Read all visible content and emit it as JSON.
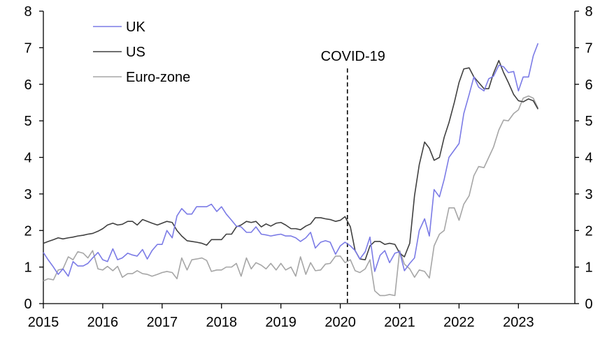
{
  "chart_data": {
    "type": "line",
    "title": "",
    "xlabel": "",
    "ylabel": "",
    "ylim": [
      0,
      8
    ],
    "xlim": [
      2015,
      2023.95
    ],
    "y_ticks": [
      "0",
      "1",
      "2",
      "3",
      "4",
      "5",
      "6",
      "7",
      "8"
    ],
    "x_ticks": [
      "2015",
      "2016",
      "2017",
      "2018",
      "2019",
      "2020",
      "2021",
      "2022",
      "2023"
    ],
    "legend_position": "top-left",
    "annotation": {
      "label": "COVID-19",
      "x": 2020.12
    },
    "series": [
      {
        "name": "UK",
        "color": "#7b7be6",
        "values": [
          [
            2015.0,
            1.4
          ],
          [
            2015.08,
            1.2
          ],
          [
            2015.17,
            1.0
          ],
          [
            2015.25,
            0.8
          ],
          [
            2015.33,
            0.95
          ],
          [
            2015.42,
            0.75
          ],
          [
            2015.5,
            1.15
          ],
          [
            2015.58,
            1.03
          ],
          [
            2015.67,
            1.03
          ],
          [
            2015.75,
            1.1
          ],
          [
            2015.83,
            1.25
          ],
          [
            2015.92,
            1.4
          ],
          [
            2016.0,
            1.2
          ],
          [
            2016.08,
            1.15
          ],
          [
            2016.17,
            1.5
          ],
          [
            2016.25,
            1.2
          ],
          [
            2016.33,
            1.25
          ],
          [
            2016.42,
            1.38
          ],
          [
            2016.5,
            1.33
          ],
          [
            2016.58,
            1.3
          ],
          [
            2016.67,
            1.48
          ],
          [
            2016.75,
            1.22
          ],
          [
            2016.83,
            1.45
          ],
          [
            2016.92,
            1.62
          ],
          [
            2017.0,
            1.62
          ],
          [
            2017.08,
            2.0
          ],
          [
            2017.17,
            1.8
          ],
          [
            2017.25,
            2.4
          ],
          [
            2017.33,
            2.6
          ],
          [
            2017.42,
            2.45
          ],
          [
            2017.5,
            2.45
          ],
          [
            2017.58,
            2.65
          ],
          [
            2017.67,
            2.65
          ],
          [
            2017.75,
            2.65
          ],
          [
            2017.83,
            2.72
          ],
          [
            2017.92,
            2.52
          ],
          [
            2018.0,
            2.65
          ],
          [
            2018.08,
            2.45
          ],
          [
            2018.17,
            2.28
          ],
          [
            2018.25,
            2.12
          ],
          [
            2018.33,
            2.1
          ],
          [
            2018.42,
            1.95
          ],
          [
            2018.5,
            1.95
          ],
          [
            2018.58,
            2.1
          ],
          [
            2018.67,
            1.9
          ],
          [
            2018.75,
            1.88
          ],
          [
            2018.83,
            1.85
          ],
          [
            2018.92,
            1.88
          ],
          [
            2019.0,
            1.9
          ],
          [
            2019.08,
            1.85
          ],
          [
            2019.17,
            1.85
          ],
          [
            2019.25,
            1.8
          ],
          [
            2019.33,
            1.7
          ],
          [
            2019.42,
            1.8
          ],
          [
            2019.5,
            1.95
          ],
          [
            2019.58,
            1.52
          ],
          [
            2019.67,
            1.68
          ],
          [
            2019.75,
            1.72
          ],
          [
            2019.83,
            1.68
          ],
          [
            2019.92,
            1.35
          ],
          [
            2020.0,
            1.58
          ],
          [
            2020.08,
            1.68
          ],
          [
            2020.17,
            1.58
          ],
          [
            2020.25,
            1.45
          ],
          [
            2020.33,
            1.22
          ],
          [
            2020.42,
            1.42
          ],
          [
            2020.5,
            1.82
          ],
          [
            2020.58,
            0.88
          ],
          [
            2020.67,
            1.32
          ],
          [
            2020.75,
            1.45
          ],
          [
            2020.83,
            1.12
          ],
          [
            2020.92,
            1.38
          ],
          [
            2021.0,
            1.42
          ],
          [
            2021.08,
            0.9
          ],
          [
            2021.17,
            1.1
          ],
          [
            2021.25,
            1.25
          ],
          [
            2021.33,
            2.0
          ],
          [
            2021.42,
            2.32
          ],
          [
            2021.5,
            1.85
          ],
          [
            2021.58,
            3.12
          ],
          [
            2021.67,
            2.92
          ],
          [
            2021.75,
            3.4
          ],
          [
            2021.83,
            4.0
          ],
          [
            2021.92,
            4.2
          ],
          [
            2022.0,
            4.38
          ],
          [
            2022.08,
            5.2
          ],
          [
            2022.17,
            5.72
          ],
          [
            2022.25,
            6.2
          ],
          [
            2022.33,
            5.92
          ],
          [
            2022.42,
            5.82
          ],
          [
            2022.5,
            6.15
          ],
          [
            2022.58,
            6.22
          ],
          [
            2022.67,
            6.52
          ],
          [
            2022.75,
            6.48
          ],
          [
            2022.83,
            6.32
          ],
          [
            2022.92,
            6.35
          ],
          [
            2023.0,
            5.82
          ],
          [
            2023.08,
            6.2
          ],
          [
            2023.17,
            6.2
          ],
          [
            2023.25,
            6.78
          ],
          [
            2023.33,
            7.12
          ]
        ]
      },
      {
        "name": "US",
        "color": "#404040",
        "values": [
          [
            2015.0,
            1.65
          ],
          [
            2015.08,
            1.7
          ],
          [
            2015.17,
            1.75
          ],
          [
            2015.25,
            1.8
          ],
          [
            2015.33,
            1.77
          ],
          [
            2015.42,
            1.8
          ],
          [
            2015.5,
            1.82
          ],
          [
            2015.58,
            1.85
          ],
          [
            2015.67,
            1.87
          ],
          [
            2015.75,
            1.9
          ],
          [
            2015.83,
            1.92
          ],
          [
            2015.92,
            1.98
          ],
          [
            2016.0,
            2.05
          ],
          [
            2016.08,
            2.15
          ],
          [
            2016.17,
            2.2
          ],
          [
            2016.25,
            2.15
          ],
          [
            2016.33,
            2.17
          ],
          [
            2016.42,
            2.25
          ],
          [
            2016.5,
            2.25
          ],
          [
            2016.58,
            2.15
          ],
          [
            2016.67,
            2.3
          ],
          [
            2016.75,
            2.25
          ],
          [
            2016.83,
            2.2
          ],
          [
            2016.92,
            2.15
          ],
          [
            2017.0,
            2.2
          ],
          [
            2017.08,
            2.25
          ],
          [
            2017.17,
            2.22
          ],
          [
            2017.25,
            2.0
          ],
          [
            2017.33,
            1.85
          ],
          [
            2017.42,
            1.72
          ],
          [
            2017.5,
            1.7
          ],
          [
            2017.58,
            1.68
          ],
          [
            2017.67,
            1.65
          ],
          [
            2017.75,
            1.6
          ],
          [
            2017.83,
            1.75
          ],
          [
            2017.92,
            1.75
          ],
          [
            2018.0,
            1.75
          ],
          [
            2018.08,
            1.9
          ],
          [
            2018.17,
            1.9
          ],
          [
            2018.25,
            2.1
          ],
          [
            2018.33,
            2.15
          ],
          [
            2018.42,
            2.25
          ],
          [
            2018.5,
            2.22
          ],
          [
            2018.58,
            2.25
          ],
          [
            2018.67,
            2.1
          ],
          [
            2018.75,
            2.18
          ],
          [
            2018.83,
            2.12
          ],
          [
            2018.92,
            2.2
          ],
          [
            2019.0,
            2.22
          ],
          [
            2019.08,
            2.15
          ],
          [
            2019.17,
            2.05
          ],
          [
            2019.25,
            2.05
          ],
          [
            2019.33,
            2.02
          ],
          [
            2019.42,
            2.12
          ],
          [
            2019.5,
            2.18
          ],
          [
            2019.58,
            2.35
          ],
          [
            2019.67,
            2.35
          ],
          [
            2019.75,
            2.32
          ],
          [
            2019.83,
            2.3
          ],
          [
            2019.92,
            2.25
          ],
          [
            2020.0,
            2.28
          ],
          [
            2020.08,
            2.38
          ],
          [
            2020.17,
            2.1
          ],
          [
            2020.25,
            1.45
          ],
          [
            2020.33,
            1.22
          ],
          [
            2020.42,
            1.2
          ],
          [
            2020.5,
            1.58
          ],
          [
            2020.58,
            1.7
          ],
          [
            2020.67,
            1.7
          ],
          [
            2020.75,
            1.62
          ],
          [
            2020.83,
            1.65
          ],
          [
            2020.92,
            1.62
          ],
          [
            2021.0,
            1.38
          ],
          [
            2021.08,
            1.28
          ],
          [
            2021.17,
            1.65
          ],
          [
            2021.25,
            2.95
          ],
          [
            2021.33,
            3.8
          ],
          [
            2021.42,
            4.42
          ],
          [
            2021.5,
            4.25
          ],
          [
            2021.58,
            3.92
          ],
          [
            2021.67,
            4.0
          ],
          [
            2021.75,
            4.55
          ],
          [
            2021.83,
            4.95
          ],
          [
            2021.92,
            5.5
          ],
          [
            2022.0,
            6.05
          ],
          [
            2022.08,
            6.42
          ],
          [
            2022.17,
            6.45
          ],
          [
            2022.25,
            6.2
          ],
          [
            2022.33,
            6.05
          ],
          [
            2022.42,
            5.88
          ],
          [
            2022.5,
            5.88
          ],
          [
            2022.58,
            6.3
          ],
          [
            2022.67,
            6.65
          ],
          [
            2022.75,
            6.32
          ],
          [
            2022.83,
            6.05
          ],
          [
            2022.92,
            5.72
          ],
          [
            2023.0,
            5.55
          ],
          [
            2023.08,
            5.52
          ],
          [
            2023.17,
            5.6
          ],
          [
            2023.25,
            5.55
          ],
          [
            2023.33,
            5.32
          ]
        ]
      },
      {
        "name": "Euro-zone",
        "color": "#a6a6a6",
        "values": [
          [
            2015.0,
            0.62
          ],
          [
            2015.08,
            0.68
          ],
          [
            2015.17,
            0.65
          ],
          [
            2015.25,
            0.92
          ],
          [
            2015.33,
            0.95
          ],
          [
            2015.42,
            1.28
          ],
          [
            2015.5,
            1.2
          ],
          [
            2015.58,
            1.42
          ],
          [
            2015.67,
            1.38
          ],
          [
            2015.75,
            1.25
          ],
          [
            2015.83,
            1.45
          ],
          [
            2015.92,
            0.95
          ],
          [
            2016.0,
            0.92
          ],
          [
            2016.08,
            1.02
          ],
          [
            2016.17,
            0.9
          ],
          [
            2016.25,
            1.02
          ],
          [
            2016.33,
            0.72
          ],
          [
            2016.42,
            0.82
          ],
          [
            2016.5,
            0.82
          ],
          [
            2016.58,
            0.9
          ],
          [
            2016.67,
            0.82
          ],
          [
            2016.75,
            0.8
          ],
          [
            2016.83,
            0.75
          ],
          [
            2016.92,
            0.8
          ],
          [
            2017.0,
            0.85
          ],
          [
            2017.08,
            0.88
          ],
          [
            2017.17,
            0.85
          ],
          [
            2017.25,
            0.68
          ],
          [
            2017.33,
            1.25
          ],
          [
            2017.42,
            0.92
          ],
          [
            2017.5,
            1.2
          ],
          [
            2017.58,
            1.22
          ],
          [
            2017.67,
            1.25
          ],
          [
            2017.75,
            1.18
          ],
          [
            2017.83,
            0.88
          ],
          [
            2017.92,
            0.92
          ],
          [
            2018.0,
            0.92
          ],
          [
            2018.08,
            1.0
          ],
          [
            2018.17,
            1.0
          ],
          [
            2018.25,
            1.1
          ],
          [
            2018.33,
            0.75
          ],
          [
            2018.42,
            1.25
          ],
          [
            2018.5,
            0.95
          ],
          [
            2018.58,
            1.12
          ],
          [
            2018.67,
            1.05
          ],
          [
            2018.75,
            0.95
          ],
          [
            2018.83,
            1.1
          ],
          [
            2018.92,
            0.92
          ],
          [
            2019.0,
            1.1
          ],
          [
            2019.08,
            0.92
          ],
          [
            2019.17,
            1.0
          ],
          [
            2019.25,
            0.75
          ],
          [
            2019.33,
            1.28
          ],
          [
            2019.42,
            0.8
          ],
          [
            2019.5,
            1.12
          ],
          [
            2019.58,
            0.9
          ],
          [
            2019.67,
            0.92
          ],
          [
            2019.75,
            1.08
          ],
          [
            2019.83,
            1.1
          ],
          [
            2019.92,
            1.3
          ],
          [
            2020.0,
            1.3
          ],
          [
            2020.08,
            1.12
          ],
          [
            2020.17,
            1.2
          ],
          [
            2020.25,
            0.9
          ],
          [
            2020.33,
            0.85
          ],
          [
            2020.42,
            0.95
          ],
          [
            2020.5,
            1.2
          ],
          [
            2020.58,
            0.35
          ],
          [
            2020.67,
            0.22
          ],
          [
            2020.75,
            0.22
          ],
          [
            2020.83,
            0.25
          ],
          [
            2020.92,
            0.22
          ],
          [
            2021.0,
            1.45
          ],
          [
            2021.08,
            1.08
          ],
          [
            2021.17,
            0.95
          ],
          [
            2021.25,
            0.72
          ],
          [
            2021.33,
            0.92
          ],
          [
            2021.42,
            0.88
          ],
          [
            2021.5,
            0.7
          ],
          [
            2021.58,
            1.58
          ],
          [
            2021.67,
            1.9
          ],
          [
            2021.75,
            2.0
          ],
          [
            2021.83,
            2.62
          ],
          [
            2021.92,
            2.62
          ],
          [
            2022.0,
            2.28
          ],
          [
            2022.08,
            2.72
          ],
          [
            2022.17,
            2.95
          ],
          [
            2022.25,
            3.5
          ],
          [
            2022.33,
            3.75
          ],
          [
            2022.42,
            3.72
          ],
          [
            2022.5,
            4.0
          ],
          [
            2022.58,
            4.28
          ],
          [
            2022.67,
            4.75
          ],
          [
            2022.75,
            5.02
          ],
          [
            2022.83,
            5.0
          ],
          [
            2022.92,
            5.2
          ],
          [
            2023.0,
            5.3
          ],
          [
            2023.08,
            5.62
          ],
          [
            2023.17,
            5.68
          ],
          [
            2023.25,
            5.62
          ],
          [
            2023.33,
            5.35
          ]
        ]
      }
    ]
  }
}
